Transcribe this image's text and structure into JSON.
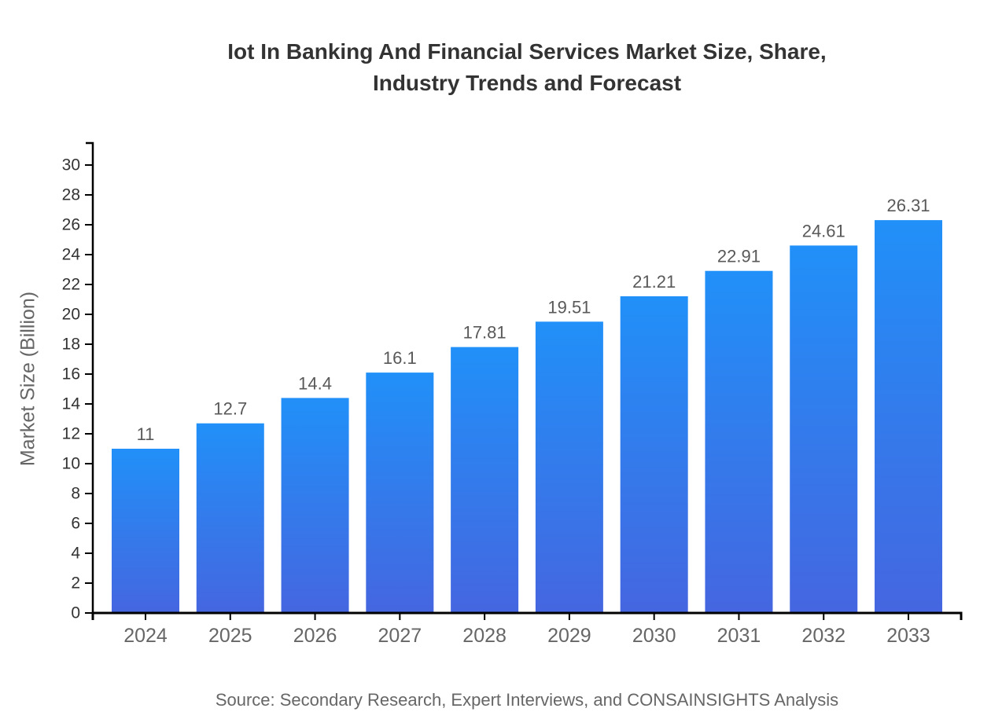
{
  "title": {
    "line1": "Iot In Banking And Financial Services Market Size, Share,",
    "line2": "Industry Trends and Forecast"
  },
  "source": "Source: Secondary Research, Expert Interviews, and CONSAINSIGHTS Analysis",
  "chart_data": {
    "type": "bar",
    "title": "Iot In Banking And Financial Services Market Size, Share, Industry Trends and Forecast",
    "categories": [
      "2024",
      "2025",
      "2026",
      "2027",
      "2028",
      "2029",
      "2030",
      "2031",
      "2032",
      "2033"
    ],
    "values": [
      11,
      12.7,
      14.4,
      16.1,
      17.81,
      19.51,
      21.21,
      22.91,
      24.61,
      26.31
    ],
    "value_labels": [
      "11",
      "12.7",
      "14.4",
      "16.1",
      "17.81",
      "19.51",
      "21.21",
      "22.91",
      "24.61",
      "26.31"
    ],
    "xlabel": "",
    "ylabel": "Market Size (Billion)",
    "ylim": [
      0,
      30
    ],
    "ytick_step": 2,
    "grid": false,
    "legend": false,
    "colors": {
      "bar_gradient_top": "#2190f8",
      "bar_gradient_bottom": "#4566e0",
      "axis": "#000000",
      "y_tick_label": "#333333",
      "x_tick_label": "#666666",
      "value_label": "#595959",
      "title": "#333333",
      "ylabel": "#666666",
      "source": "#666666"
    }
  }
}
